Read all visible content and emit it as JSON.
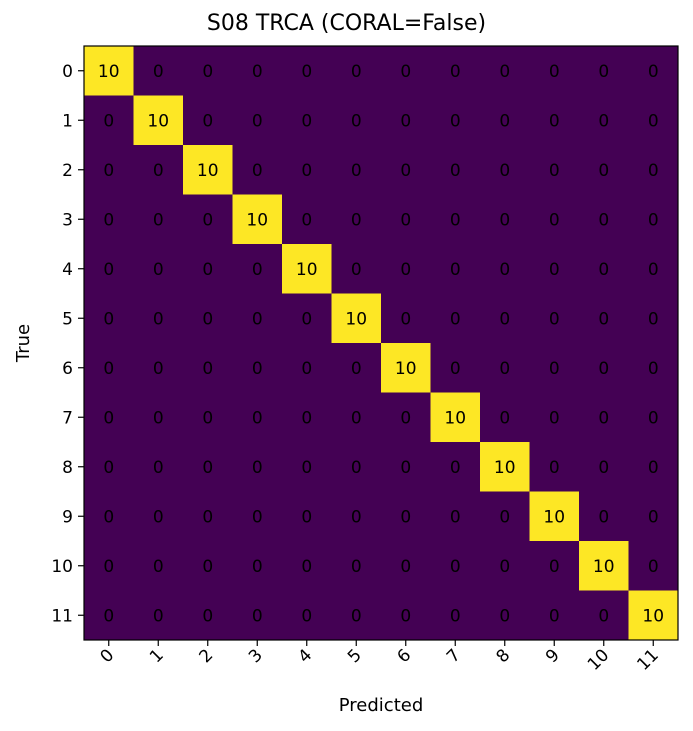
{
  "chart_data": {
    "type": "heatmap",
    "title": "S08 TRCA (CORAL=False)",
    "xlabel": "Predicted",
    "ylabel": "True",
    "x_categories": [
      "0",
      "1",
      "2",
      "3",
      "4",
      "5",
      "6",
      "7",
      "8",
      "9",
      "10",
      "11"
    ],
    "y_categories": [
      "0",
      "1",
      "2",
      "3",
      "4",
      "5",
      "6",
      "7",
      "8",
      "9",
      "10",
      "11"
    ],
    "values": [
      [
        10,
        0,
        0,
        0,
        0,
        0,
        0,
        0,
        0,
        0,
        0,
        0
      ],
      [
        0,
        10,
        0,
        0,
        0,
        0,
        0,
        0,
        0,
        0,
        0,
        0
      ],
      [
        0,
        0,
        10,
        0,
        0,
        0,
        0,
        0,
        0,
        0,
        0,
        0
      ],
      [
        0,
        0,
        0,
        10,
        0,
        0,
        0,
        0,
        0,
        0,
        0,
        0
      ],
      [
        0,
        0,
        0,
        0,
        10,
        0,
        0,
        0,
        0,
        0,
        0,
        0
      ],
      [
        0,
        0,
        0,
        0,
        0,
        10,
        0,
        0,
        0,
        0,
        0,
        0
      ],
      [
        0,
        0,
        0,
        0,
        0,
        0,
        10,
        0,
        0,
        0,
        0,
        0
      ],
      [
        0,
        0,
        0,
        0,
        0,
        0,
        0,
        10,
        0,
        0,
        0,
        0
      ],
      [
        0,
        0,
        0,
        0,
        0,
        0,
        0,
        0,
        10,
        0,
        0,
        0
      ],
      [
        0,
        0,
        0,
        0,
        0,
        0,
        0,
        0,
        0,
        10,
        0,
        0
      ],
      [
        0,
        0,
        0,
        0,
        0,
        0,
        0,
        0,
        0,
        0,
        10,
        0
      ],
      [
        0,
        0,
        0,
        0,
        0,
        0,
        0,
        0,
        0,
        0,
        0,
        10
      ]
    ],
    "colormap": "viridis",
    "colors": {
      "low": "#440154",
      "high": "#fde725"
    },
    "grid": false,
    "legend": "none"
  }
}
